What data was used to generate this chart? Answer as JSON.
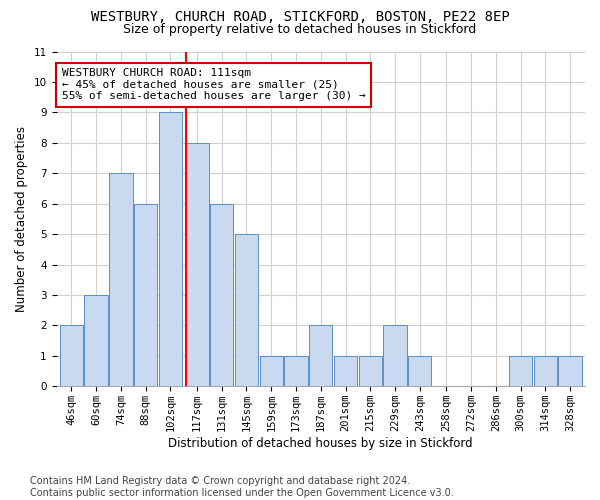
{
  "title": "WESTBURY, CHURCH ROAD, STICKFORD, BOSTON, PE22 8EP",
  "subtitle": "Size of property relative to detached houses in Stickford",
  "xlabel": "Distribution of detached houses by size in Stickford",
  "ylabel": "Number of detached properties",
  "footnote": "Contains HM Land Registry data © Crown copyright and database right 2024.\nContains public sector information licensed under the Open Government Licence v3.0.",
  "bins": [
    46,
    60,
    74,
    88,
    102,
    117,
    131,
    145,
    159,
    173,
    187,
    201,
    215,
    229,
    243,
    258,
    272,
    286,
    300,
    314,
    328
  ],
  "counts": [
    2,
    3,
    7,
    6,
    9,
    8,
    6,
    5,
    1,
    1,
    2,
    1,
    1,
    2,
    1,
    0,
    0,
    0,
    1,
    1,
    1
  ],
  "bar_color": "#c9d9f0",
  "bar_edge_color": "#5b8fc9",
  "red_line_x": 111,
  "annotation_line1": "WESTBURY CHURCH ROAD: 111sqm",
  "annotation_line2": "← 45% of detached houses are smaller (25)",
  "annotation_line3": "55% of semi-detached houses are larger (30) →",
  "annotation_box_color": "#ffffff",
  "annotation_box_edge": "#cc0000",
  "ylim": [
    0,
    11
  ],
  "yticks": [
    0,
    1,
    2,
    3,
    4,
    5,
    6,
    7,
    8,
    9,
    10,
    11
  ],
  "grid_color": "#d0d0d0",
  "background_color": "#ffffff",
  "title_fontsize": 10,
  "subtitle_fontsize": 9,
  "ylabel_fontsize": 8.5,
  "xlabel_fontsize": 8.5,
  "tick_fontsize": 7.5,
  "annotation_fontsize": 8,
  "footnote_fontsize": 7
}
